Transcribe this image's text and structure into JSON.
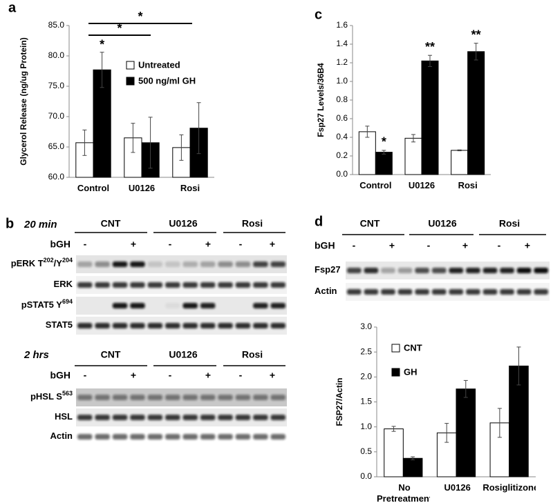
{
  "panel_labels": [
    "a",
    "b",
    "c",
    "d"
  ],
  "chart_data": [
    {
      "type": "bar",
      "ylabel": "Glycerol Release (ng/ug Protein)",
      "categories": [
        "Control",
        "U0126",
        "Rosi"
      ],
      "series": [
        {
          "name": "Untreated",
          "color": "#ffffff",
          "values": [
            65.7,
            66.5,
            64.9
          ],
          "errors": [
            2.1,
            2.4,
            2.1
          ]
        },
        {
          "name": "500 ng/ml GH",
          "color": "#000000",
          "values": [
            77.7,
            65.7,
            68.1
          ],
          "errors": [
            2.9,
            4.2,
            4.2
          ]
        }
      ],
      "ylim": [
        60,
        85
      ],
      "yticks": [
        {
          "value": 60,
          "label": "60.0"
        },
        {
          "value": 65,
          "label": "65.0"
        },
        {
          "value": 70,
          "label": "70.0"
        },
        {
          "value": 75,
          "label": "75.0"
        },
        {
          "value": 80,
          "label": "80.0"
        },
        {
          "value": 85,
          "label": "85.0"
        }
      ],
      "annotations": [
        "*",
        "*",
        "*"
      ],
      "legend": true
    },
    {
      "type": "bar",
      "ylabel": "Fsp27 Levels/36B4",
      "categories": [
        "Control",
        "U0126",
        "Rosi"
      ],
      "series": [
        {
          "color": "#ffffff",
          "values": [
            0.46,
            0.39,
            0.26
          ],
          "errors": [
            0.06,
            0.04,
            0.005
          ]
        },
        {
          "color": "#000000",
          "values": [
            0.24,
            1.22,
            1.32
          ],
          "errors": [
            0.02,
            0.06,
            0.09
          ]
        }
      ],
      "ylim": [
        0,
        1.6
      ],
      "yticks": [
        {
          "value": 0,
          "label": "0.0"
        },
        0.2,
        0.4,
        0.6,
        0.8,
        {
          "value": 1,
          "label": "1.0"
        },
        1.2,
        1.4,
        1.6
      ],
      "annotations": [
        "*",
        "**",
        "**"
      ],
      "legend": false
    },
    {
      "type": "bar",
      "ylabel": "FSP27/Actin",
      "categories": [
        "No Pretreatment",
        "U0126",
        "Rosiglitizone"
      ],
      "series": [
        {
          "name": "CNT",
          "color": "#ffffff",
          "values": [
            0.96,
            0.88,
            1.08
          ],
          "errors": [
            0.05,
            0.19,
            0.29
          ]
        },
        {
          "name": "GH",
          "color": "#000000",
          "values": [
            0.37,
            1.76,
            2.22
          ],
          "errors": [
            0.03,
            0.17,
            0.38
          ]
        }
      ],
      "ylim": [
        0,
        3
      ],
      "yticks": [
        {
          "value": 0,
          "label": "0.0"
        },
        0.5,
        {
          "value": 1,
          "label": "1.0"
        },
        1.5,
        {
          "value": 2,
          "label": "2.0"
        },
        2.5,
        {
          "value": 3,
          "label": "3.0"
        }
      ],
      "annotations": [],
      "legend": true
    }
  ],
  "blots": [
    {
      "time": "20 min",
      "groups": [
        "CNT",
        "U0126",
        "Rosi"
      ],
      "treatment": "bGH",
      "lanes": [
        "-",
        "+",
        "-",
        "+",
        "-",
        "+"
      ],
      "rows": [
        [
          "pERK T",
          "202",
          "/Y",
          "204"
        ],
        [
          "ERK"
        ],
        [
          "pSTAT5 Y",
          "694"
        ],
        [
          "STAT5"
        ]
      ]
    },
    {
      "time": "2 hrs",
      "groups": [
        "CNT",
        "U0126",
        "Rosi"
      ],
      "treatment": "bGH",
      "lanes": [
        "-",
        "+",
        "-",
        "+",
        "-",
        "+"
      ],
      "rows": [
        [
          "pHSL S",
          "563"
        ],
        [
          "HSL"
        ],
        [
          "Actin"
        ]
      ]
    },
    {
      "groups": [
        "CNT",
        "U0126",
        "Rosi"
      ],
      "treatment": "bGH",
      "lanes": [
        "-",
        "+",
        "-",
        "+",
        "-",
        "+"
      ],
      "rows": [
        [
          "Fsp27"
        ],
        [
          "Actin"
        ]
      ]
    }
  ]
}
